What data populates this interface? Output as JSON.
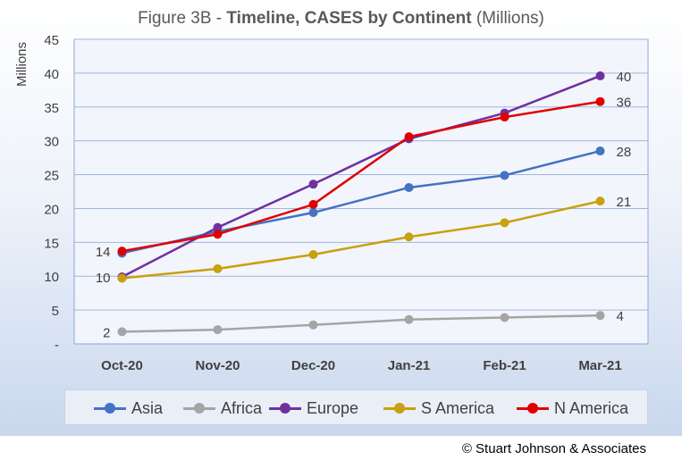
{
  "title": {
    "prefix": "Figure 3B - ",
    "bold": "Timeline, CASES by Continent",
    "suffix": " (Millions)"
  },
  "copyright": "© Stuart Johnson & Associates",
  "chart_data": {
    "type": "line",
    "categories": [
      "Oct-20",
      "Nov-20",
      "Dec-20",
      "Jan-21",
      "Feb-21",
      "Mar-21"
    ],
    "ylabel": "Millions",
    "ylim": [
      0,
      45
    ],
    "yticks": [
      {
        "value": 0,
        "label": "-"
      },
      {
        "value": 5,
        "label": "5"
      },
      {
        "value": 10,
        "label": "10"
      },
      {
        "value": 15,
        "label": "15"
      },
      {
        "value": 20,
        "label": "20"
      },
      {
        "value": 25,
        "label": "25"
      },
      {
        "value": 30,
        "label": "30"
      },
      {
        "value": 35,
        "label": "35"
      },
      {
        "value": 40,
        "label": "40"
      },
      {
        "value": 45,
        "label": "45"
      }
    ],
    "grid": true,
    "legend_position": "bottom",
    "series": [
      {
        "name": "Asia",
        "color": "#4472c4",
        "values": [
          13.4,
          16.6,
          19.4,
          23.1,
          24.9,
          28.5
        ],
        "labels": [
          {
            "index": 5,
            "text": "28"
          }
        ]
      },
      {
        "name": "Africa",
        "color": "#a5a5a5",
        "values": [
          1.8,
          2.1,
          2.8,
          3.6,
          3.9,
          4.2
        ],
        "labels": [
          {
            "index": 0,
            "text": "2"
          },
          {
            "index": 5,
            "text": "4"
          }
        ]
      },
      {
        "name": "Europe",
        "color": "#7030a0",
        "values": [
          9.9,
          17.2,
          23.6,
          30.3,
          34.1,
          39.6
        ],
        "labels": [
          {
            "index": 0,
            "text": "10"
          },
          {
            "index": 5,
            "text": "40"
          }
        ]
      },
      {
        "name": "S America",
        "color": "#c9a00d",
        "values": [
          9.7,
          11.1,
          13.2,
          15.8,
          17.9,
          21.1
        ],
        "labels": [
          {
            "index": 5,
            "text": "21"
          }
        ]
      },
      {
        "name": "N America",
        "color": "#e00000",
        "values": [
          13.7,
          16.2,
          20.6,
          30.6,
          33.5,
          35.8
        ],
        "labels": [
          {
            "index": 0,
            "text": "14"
          },
          {
            "index": 5,
            "text": "36"
          }
        ]
      }
    ]
  }
}
